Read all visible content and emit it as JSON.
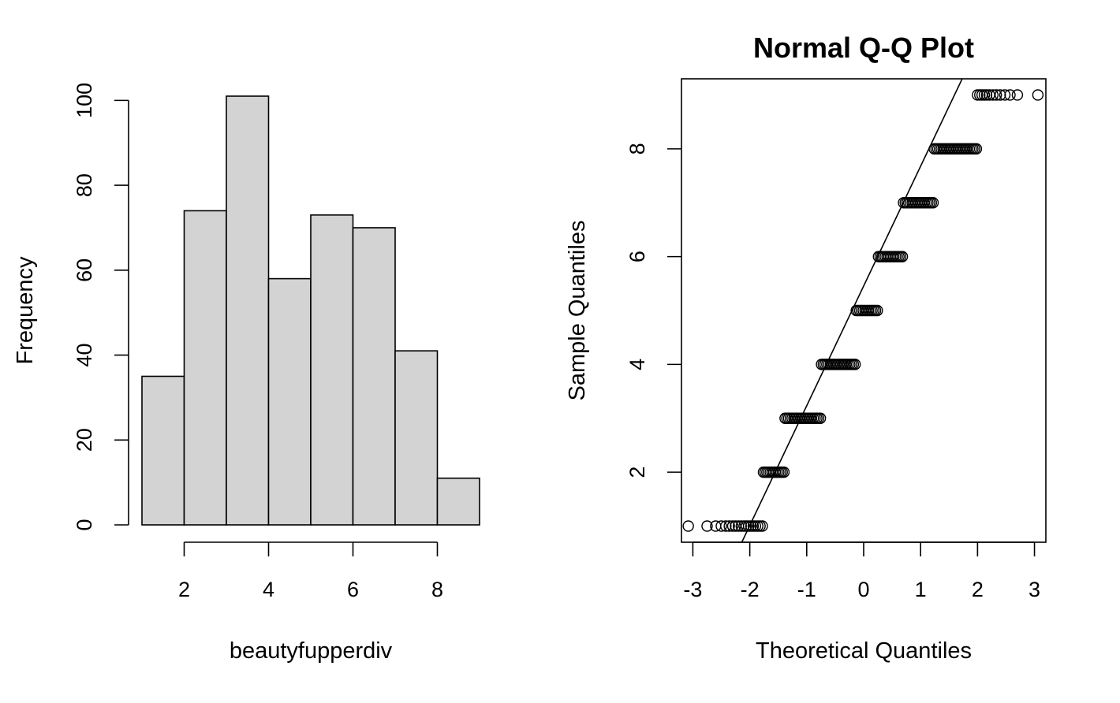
{
  "chart_data": [
    {
      "type": "bar",
      "subtype": "histogram",
      "title": "",
      "xlabel": "beautyfupperdiv",
      "ylabel": "Frequency",
      "bins": [
        [
          1,
          2
        ],
        [
          2,
          3
        ],
        [
          3,
          4
        ],
        [
          4,
          5
        ],
        [
          5,
          6
        ],
        [
          6,
          7
        ],
        [
          7,
          8
        ],
        [
          8,
          9
        ]
      ],
      "values": [
        35,
        74,
        101,
        58,
        73,
        70,
        41,
        11
      ],
      "xlim": [
        1,
        9
      ],
      "ylim": [
        0,
        101
      ],
      "xticks": [
        2,
        4,
        6,
        8
      ],
      "yticks": [
        0,
        20,
        40,
        60,
        80,
        100
      ],
      "bar_color": "#d3d3d3",
      "grid": false
    },
    {
      "type": "scatter",
      "subtype": "normal-qq",
      "title": "Normal Q-Q Plot",
      "xlabel": "Theoretical Quantiles",
      "ylabel": "Sample Quantiles",
      "xlim": [
        -3.2,
        3.2
      ],
      "ylim": [
        0.7,
        9.3
      ],
      "xticks": [
        -3,
        -2,
        -1,
        0,
        1,
        2,
        3
      ],
      "yticks": [
        2,
        4,
        6,
        8
      ],
      "reference_line": {
        "from": [
          -2.14,
          0.7
        ],
        "to": [
          1.73,
          9.3
        ]
      },
      "groups": [
        {
          "y": 1,
          "x_range": [
            -3.08,
            -1.78
          ],
          "sparse": [
            -3.08,
            -2.75,
            -2.6,
            -2.5,
            -2.42,
            -2.36,
            -2.3,
            -2.25,
            -2.2,
            -2.15,
            -2.1,
            -2.06,
            -2.02,
            -1.98,
            -1.94,
            -1.9,
            -1.86,
            -1.82,
            -1.78
          ]
        },
        {
          "y": 2,
          "x_range": [
            -1.76,
            -1.4
          ]
        },
        {
          "y": 3,
          "x_range": [
            -1.38,
            -0.76
          ]
        },
        {
          "y": 4,
          "x_range": [
            -0.74,
            -0.15
          ]
        },
        {
          "y": 5,
          "x_range": [
            -0.13,
            0.24
          ]
        },
        {
          "y": 6,
          "x_range": [
            0.26,
            0.68
          ]
        },
        {
          "y": 7,
          "x_range": [
            0.7,
            1.22
          ]
        },
        {
          "y": 8,
          "x_range": [
            1.24,
            1.98
          ]
        },
        {
          "y": 9,
          "x_range": [
            2.0,
            3.06
          ],
          "sparse": [
            2.0,
            2.04,
            2.08,
            2.12,
            2.16,
            2.21,
            2.27,
            2.33,
            2.4,
            2.48,
            2.57,
            2.7,
            3.06
          ]
        }
      ],
      "grid": false
    }
  ]
}
